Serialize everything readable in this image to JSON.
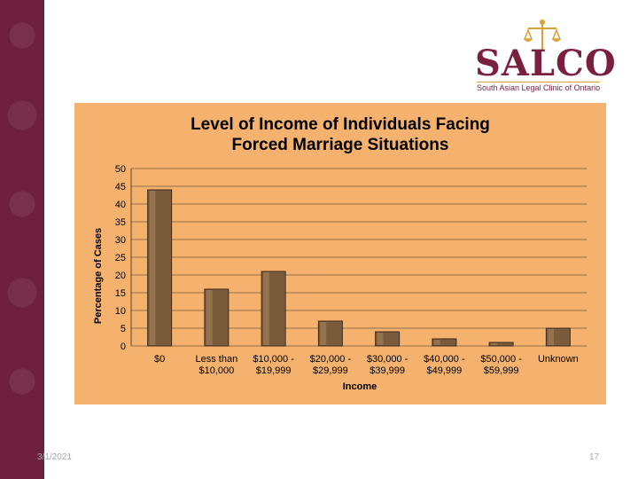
{
  "logo": {
    "name": "SALCO",
    "tagline": "South Asian Legal Clinic of Ontario",
    "brand_color": "#7a1f3d",
    "accent_color": "#d9a236"
  },
  "footer": {
    "date": "3/1/2021",
    "page_number": "17"
  },
  "chart_data": {
    "type": "bar",
    "title_lines": [
      "Level of Income of Individuals Facing",
      "Forced Marriage Situations"
    ],
    "xlabel": "Income",
    "ylabel": "Percentage of Cases",
    "ylim": [
      0,
      50
    ],
    "yticks": [
      0,
      5,
      10,
      15,
      20,
      25,
      30,
      35,
      40,
      45,
      50
    ],
    "grid": true,
    "categories": [
      [
        "$0",
        ""
      ],
      [
        "Less than",
        "$10,000"
      ],
      [
        "$10,000 -",
        "$19,999"
      ],
      [
        "$20,000 -",
        "$29,999"
      ],
      [
        "$30,000 -",
        "$39,999"
      ],
      [
        "$40,000 -",
        "$49,999"
      ],
      [
        "$50,000 -",
        "$59,999"
      ],
      [
        "Unknown",
        ""
      ]
    ],
    "values": [
      44,
      16,
      21,
      7,
      4,
      2,
      1,
      5
    ],
    "background_color": "#f5b26f",
    "bar_color": "#7a5c3c"
  }
}
